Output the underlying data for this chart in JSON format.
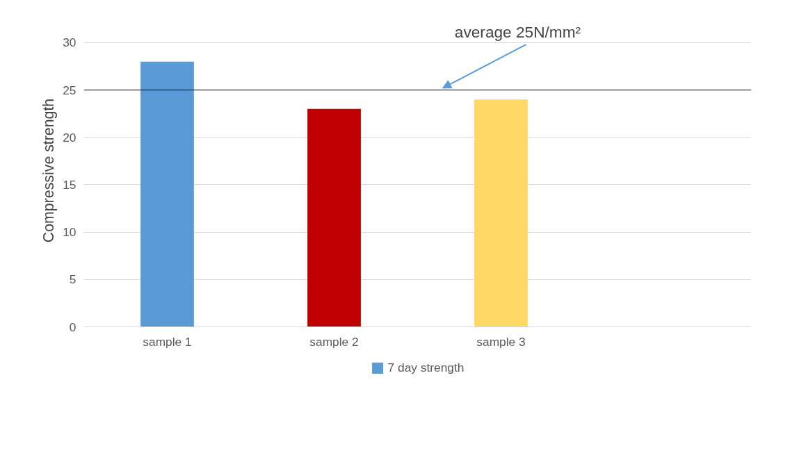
{
  "chart_data": {
    "type": "bar",
    "ylabel": "Compressive strength",
    "categories": [
      "sample 1",
      "sample 2",
      "sample 3",
      null
    ],
    "series": [
      {
        "name": "7 day strength",
        "color": "#5b9bd5",
        "colors": [
          "#5b9bd5",
          "#c00000",
          "#ffd966",
          null
        ],
        "values": [
          28,
          23,
          24,
          null
        ]
      }
    ],
    "ylim": [
      0,
      30
    ],
    "yticks": [
      0,
      5,
      10,
      15,
      20,
      25,
      30
    ],
    "grid": "y",
    "legend": "bottom",
    "ref_lines": [
      {
        "axis": "y",
        "value": 25,
        "label": "average 25N/mm²",
        "color": "#000000"
      }
    ]
  }
}
